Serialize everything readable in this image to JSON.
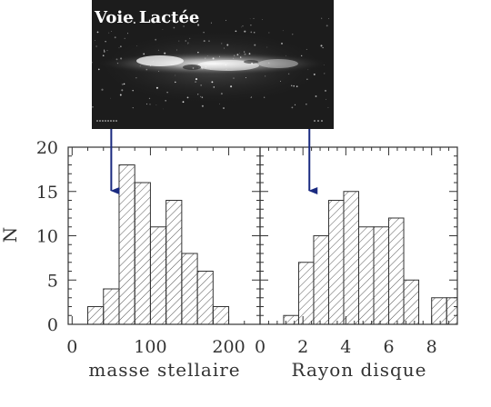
{
  "image_caption": "Voie Lactée",
  "chart_data": [
    {
      "type": "bar",
      "variant": "histogram",
      "xlabel": "masse stellaire",
      "ylabel": "N",
      "xlim": [
        -5,
        240
      ],
      "ylim": [
        0,
        20
      ],
      "x_ticks": [
        0,
        100,
        200
      ],
      "y_ticks": [
        0,
        5,
        10,
        15,
        20
      ],
      "bin_width": 20,
      "bins": [
        {
          "x0": 20,
          "x1": 40,
          "count": 2
        },
        {
          "x0": 40,
          "x1": 60,
          "count": 4
        },
        {
          "x0": 60,
          "x1": 80,
          "count": 18
        },
        {
          "x0": 80,
          "x1": 100,
          "count": 16
        },
        {
          "x0": 100,
          "x1": 120,
          "count": 11
        },
        {
          "x0": 120,
          "x1": 140,
          "count": 14
        },
        {
          "x0": 140,
          "x1": 160,
          "count": 8
        },
        {
          "x0": 160,
          "x1": 180,
          "count": 6
        },
        {
          "x0": 180,
          "x1": 200,
          "count": 2
        },
        {
          "x0": 240,
          "x1": 260,
          "count": 1
        }
      ],
      "marker": {
        "x": 50
      },
      "fill": "hatched"
    },
    {
      "type": "bar",
      "variant": "histogram",
      "xlabel": "Rayon disque",
      "ylabel": "",
      "xlim": [
        0,
        9.2
      ],
      "ylim": [
        0,
        20
      ],
      "x_ticks": [
        0,
        2,
        4,
        6,
        8
      ],
      "y_ticks": [
        0,
        5,
        10,
        15,
        20
      ],
      "bin_width": 0.7,
      "bins": [
        {
          "x0": 1.1,
          "x1": 1.8,
          "count": 1
        },
        {
          "x0": 1.8,
          "x1": 2.5,
          "count": 7
        },
        {
          "x0": 2.5,
          "x1": 3.2,
          "count": 10
        },
        {
          "x0": 3.2,
          "x1": 3.9,
          "count": 14
        },
        {
          "x0": 3.9,
          "x1": 4.6,
          "count": 15
        },
        {
          "x0": 4.6,
          "x1": 5.3,
          "count": 11
        },
        {
          "x0": 5.3,
          "x1": 6.0,
          "count": 11
        },
        {
          "x0": 6.0,
          "x1": 6.7,
          "count": 12
        },
        {
          "x0": 6.7,
          "x1": 7.4,
          "count": 5
        },
        {
          "x0": 8.0,
          "x1": 8.7,
          "count": 3
        },
        {
          "x0": 8.7,
          "x1": 9.2,
          "count": 3
        }
      ],
      "marker": {
        "x": 2.3
      },
      "fill": "hatched"
    }
  ],
  "colors": {
    "bar_stroke": "#333333",
    "hatch": "#555555",
    "marker_arrow": "#1a2a80",
    "axis": "#333333"
  }
}
